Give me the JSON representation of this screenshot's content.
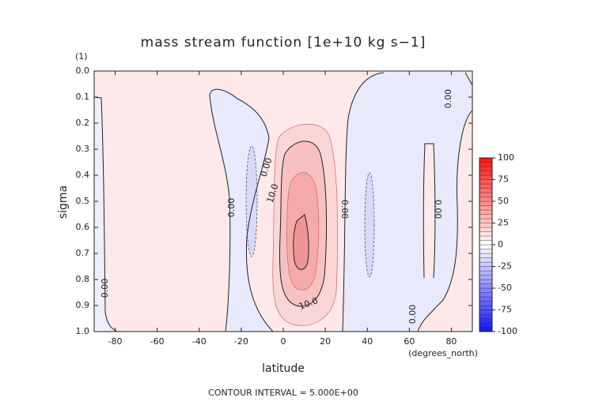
{
  "chart_data": {
    "type": "contour",
    "title": "mass stream function [1e+10 kg s−1]",
    "y_unit": "(1)",
    "y_label": "sigma",
    "x_label": "latitude",
    "x_unit": "(degrees_north)",
    "footer": "CONTOUR INTERVAL = 5.000E+00",
    "xlim": [
      -90,
      90
    ],
    "xticks": [
      -80,
      -60,
      -40,
      -20,
      0,
      20,
      40,
      60,
      80
    ],
    "ylim": [
      1.0,
      0.0
    ],
    "yticks": [
      {
        "value": 0.0,
        "label": "0.0"
      },
      {
        "value": 0.1,
        "label": "0.1"
      },
      {
        "value": 0.2,
        "label": "0.2"
      },
      {
        "value": 0.3,
        "label": "0.3"
      },
      {
        "value": 0.4,
        "label": "0.4"
      },
      {
        "value": 0.5,
        "label": "0.5"
      },
      {
        "value": 0.6,
        "label": "0.6"
      },
      {
        "value": 0.7,
        "label": "0.7"
      },
      {
        "value": 0.8,
        "label": "0.8"
      },
      {
        "value": 0.9,
        "label": "0.9"
      },
      {
        "value": 1.0,
        "label": "1.0"
      }
    ],
    "clim": [
      -100,
      100
    ],
    "cticks": [
      100,
      75,
      50,
      25,
      0,
      -25,
      -50,
      -75,
      -100
    ],
    "contour_labels": [
      "0.00",
      "0.00",
      "0.00",
      "0.00",
      "0.00",
      "0.00",
      "0.00",
      "10.0",
      "10.0"
    ]
  }
}
